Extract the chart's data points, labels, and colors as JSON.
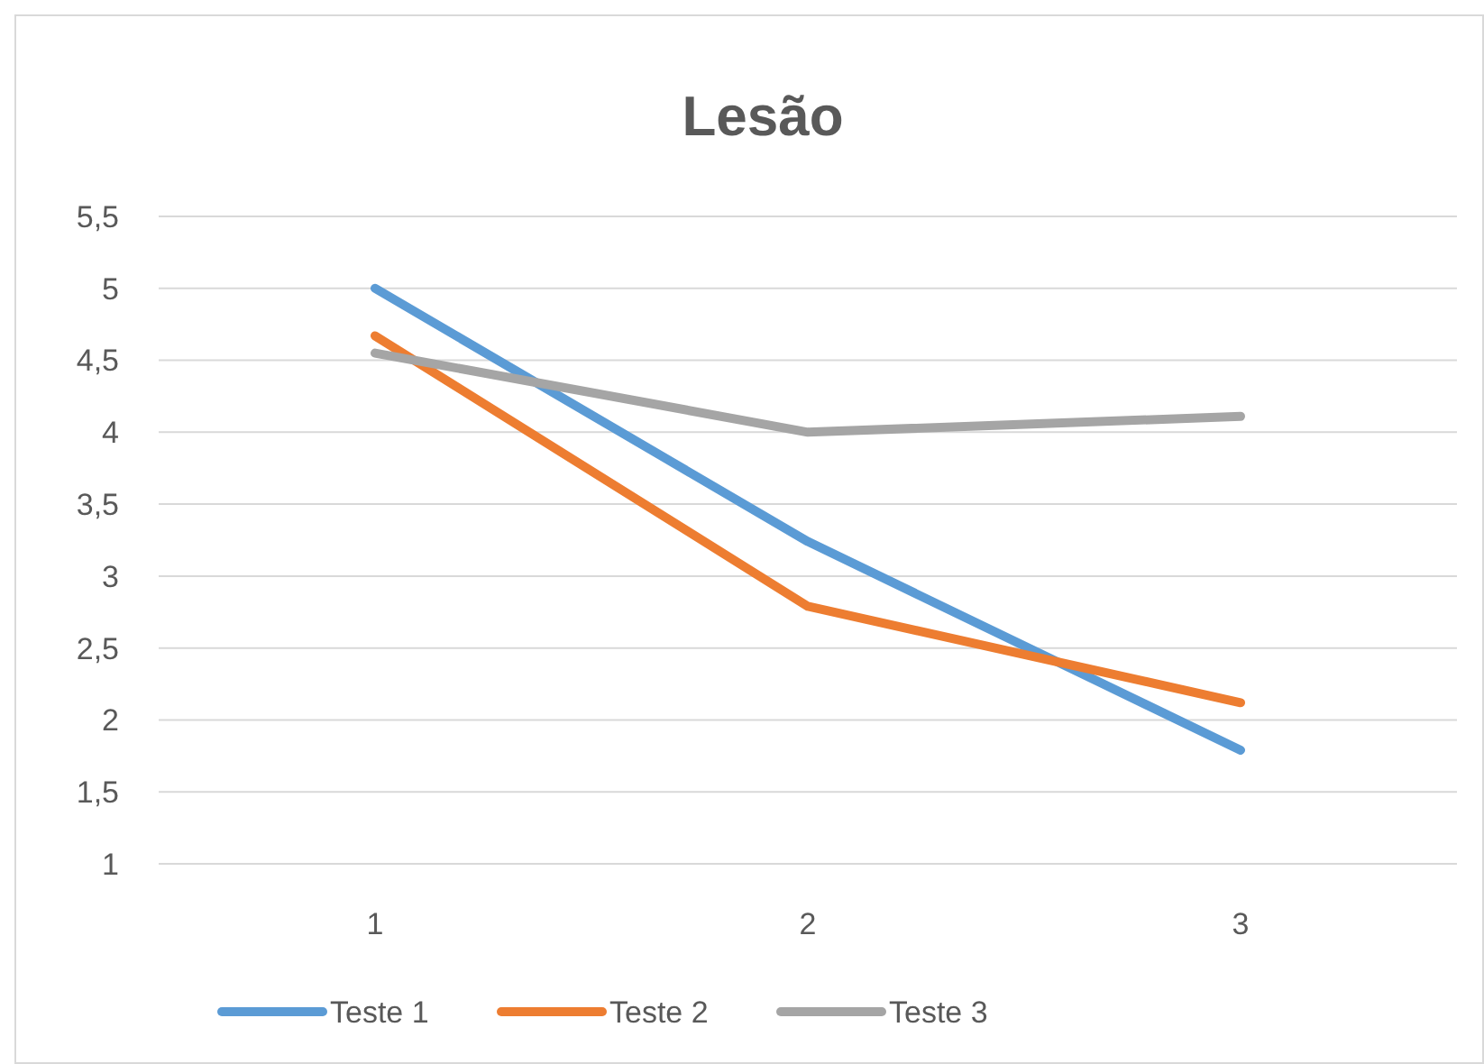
{
  "chart_data": {
    "type": "line",
    "title": "Lesão",
    "categories": [
      "1",
      "2",
      "3"
    ],
    "series": [
      {
        "name": "Teste 1",
        "color": "#5b9bd5",
        "values": [
          5.0,
          3.24,
          1.79
        ]
      },
      {
        "name": "Teste 2",
        "color": "#ed7d31",
        "values": [
          4.67,
          2.79,
          2.12
        ]
      },
      {
        "name": "Teste 3",
        "color": "#a5a5a5",
        "values": [
          4.55,
          4.0,
          4.11
        ]
      }
    ],
    "ylim": [
      1,
      5.5
    ],
    "yticks": [
      1,
      {
        "value": 1.5,
        "label": "1,5"
      },
      2,
      {
        "value": 2.5,
        "label": "2,5"
      },
      3,
      {
        "value": 3.5,
        "label": "3,5"
      },
      4,
      {
        "value": 4.5,
        "label": "4,5"
      },
      5,
      {
        "value": 5.5,
        "label": "5,5"
      }
    ],
    "grid": "y",
    "legend": "bottom",
    "marker": "none",
    "line_style": "solid"
  }
}
